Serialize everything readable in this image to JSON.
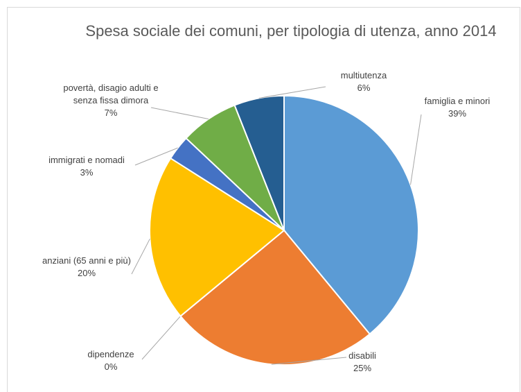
{
  "chart_data": {
    "type": "pie",
    "title": "Spesa sociale dei comuni, per tipologia di utenza, anno 2014",
    "categories": [
      "famiglia e minori",
      "disabili",
      "dipendenze",
      "anziani (65 anni e più)",
      "immigrati e nomadi",
      "povertà, disagio adulti e senza fissa dimora",
      "multiutenza"
    ],
    "values": [
      39,
      25,
      0,
      20,
      3,
      7,
      6
    ],
    "value_labels": [
      "39%",
      "25%",
      "0%",
      "20%",
      "3%",
      "7%",
      "6%"
    ],
    "colors": [
      "#5b9bd5",
      "#ed7d31",
      "#a5a5a5",
      "#ffc000",
      "#4472c4",
      "#70ad47",
      "#255e91"
    ]
  }
}
